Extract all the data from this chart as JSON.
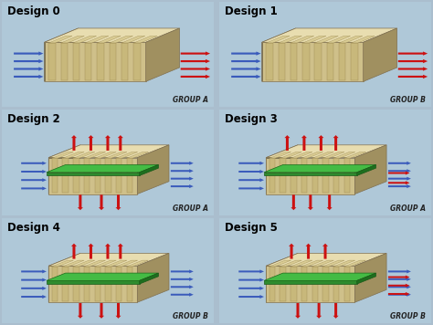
{
  "background_color": "#aabece",
  "panel_bg_color": "#afc8d8",
  "designs": [
    {
      "label": "Design 0",
      "group": "GROUP A",
      "row": 0,
      "col": 0,
      "has_green": false,
      "flow_type": 0
    },
    {
      "label": "Design 1",
      "group": "GROUP B",
      "row": 0,
      "col": 1,
      "has_green": false,
      "flow_type": 0
    },
    {
      "label": "Design 2",
      "group": "GROUP A",
      "row": 1,
      "col": 0,
      "has_green": true,
      "flow_type": 1
    },
    {
      "label": "Design 3",
      "group": "GROUP A",
      "row": 1,
      "col": 1,
      "has_green": true,
      "flow_type": 2
    },
    {
      "label": "Design 4",
      "group": "GROUP B",
      "row": 2,
      "col": 0,
      "has_green": true,
      "flow_type": 1
    },
    {
      "label": "Design 5",
      "group": "GROUP B",
      "row": 2,
      "col": 1,
      "has_green": true,
      "flow_type": 3
    }
  ],
  "title_fontsize": 8.5,
  "group_fontsize": 5.5,
  "blue_color": "#3a5bbb",
  "red_color": "#cc1111",
  "green_color": "#2e8b2e",
  "green_top": "#44bb44",
  "box_front": "#cfc08a",
  "box_top": "#e8ddb0",
  "box_right": "#a09060",
  "box_dark": "#2a3020",
  "fin_color": "#c8b87a",
  "fin_edge": "#9a8850",
  "box_edge": "#807050"
}
